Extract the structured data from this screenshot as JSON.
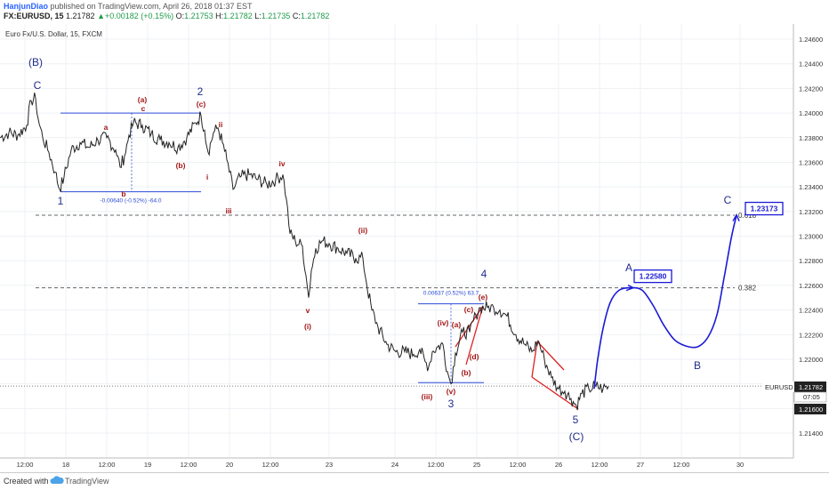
{
  "header": {
    "author": "HanjunDiao",
    "published": "published on TradingView.com, April 26, 2018 01:37 EST",
    "symbol": "FX:EURUSD, 15",
    "price": "1.21782",
    "change": "+0.00182 (+0.15%)",
    "o_label": "O:",
    "o_value": "1.21753",
    "h_label": "H:",
    "h_value": "1.21782",
    "l_label": "L:",
    "l_value": "1.21735",
    "c_label": "C:",
    "c_value": "1.21782"
  },
  "footer": {
    "created_with": "Created with",
    "brand": "TradingView"
  },
  "chart_data": {
    "type": "line",
    "title": "Euro Fx/U.S. Dollar, 15, FXCM",
    "symbol_tag": "EURUSD",
    "last_price": "1.21782",
    "countdown": "07:05",
    "level_tag": "1.21600",
    "ylim": [
      1.2125,
      1.2475
    ],
    "y_ticks": [
      "1.24600",
      "1.24400",
      "1.24200",
      "1.24000",
      "1.23800",
      "1.23600",
      "1.23400",
      "1.23200",
      "1.23000",
      "1.22800",
      "1.22600",
      "1.22400",
      "1.22200",
      "1.22000",
      "1.21800",
      "1.21600",
      "1.21400"
    ],
    "x_ticks": [
      "12:00",
      "18",
      "12:00",
      "19",
      "12:00",
      "20",
      "12:00",
      "23",
      "24",
      "12:00",
      "25",
      "12:00",
      "26",
      "12:00",
      "27",
      "12:00",
      "30"
    ],
    "series": [
      {
        "values": [
          [
            0,
            1.238
          ],
          [
            10,
            1.2384
          ],
          [
            20,
            1.2382
          ],
          [
            30,
            1.239
          ],
          [
            35,
            1.241
          ],
          [
            40,
            1.2412
          ],
          [
            43,
            1.2395
          ],
          [
            48,
            1.238
          ],
          [
            55,
            1.2368
          ],
          [
            62,
            1.2352
          ],
          [
            67,
            1.2338
          ],
          [
            72,
            1.2348
          ],
          [
            80,
            1.237
          ],
          [
            90,
            1.2376
          ],
          [
            100,
            1.2372
          ],
          [
            110,
            1.2378
          ],
          [
            120,
            1.238
          ],
          [
            130,
            1.237
          ],
          [
            135,
            1.2356
          ],
          [
            140,
            1.2365
          ],
          [
            145,
            1.2382
          ],
          [
            150,
            1.2392
          ],
          [
            160,
            1.239
          ],
          [
            170,
            1.2383
          ],
          [
            180,
            1.2378
          ],
          [
            190,
            1.2376
          ],
          [
            200,
            1.2372
          ],
          [
            210,
            1.238
          ],
          [
            220,
            1.2392
          ],
          [
            226,
            1.2398
          ],
          [
            230,
            1.2386
          ],
          [
            234,
            1.2368
          ],
          [
            240,
            1.2384
          ],
          [
            245,
            1.2388
          ],
          [
            250,
            1.2376
          ],
          [
            255,
            1.2362
          ],
          [
            262,
            1.2338
          ],
          [
            270,
            1.2348
          ],
          [
            280,
            1.235
          ],
          [
            290,
            1.2346
          ],
          [
            300,
            1.2342
          ],
          [
            310,
            1.2346
          ],
          [
            318,
            1.235
          ],
          [
            322,
            1.233
          ],
          [
            326,
            1.2302
          ],
          [
            332,
            1.2296
          ],
          [
            340,
            1.2292
          ],
          [
            344,
            1.2268
          ],
          [
            347,
            1.225
          ],
          [
            350,
            1.2272
          ],
          [
            355,
            1.229
          ],
          [
            362,
            1.2296
          ],
          [
            370,
            1.2294
          ],
          [
            380,
            1.229
          ],
          [
            390,
            1.2286
          ],
          [
            400,
            1.2282
          ],
          [
            408,
            1.2282
          ],
          [
            412,
            1.2262
          ],
          [
            418,
            1.224
          ],
          [
            425,
            1.2226
          ],
          [
            435,
            1.2212
          ],
          [
            445,
            1.2206
          ],
          [
            455,
            1.2206
          ],
          [
            465,
            1.2204
          ],
          [
            472,
            1.2208
          ],
          [
            478,
            1.2198
          ],
          [
            482,
            1.2194
          ],
          [
            486,
            1.2206
          ],
          [
            492,
            1.221
          ],
          [
            498,
            1.2212
          ],
          [
            503,
            1.219
          ],
          [
            507,
            1.218
          ],
          [
            512,
            1.2205
          ],
          [
            520,
            1.2222
          ],
          [
            528,
            1.2222
          ],
          [
            535,
            1.2236
          ],
          [
            540,
            1.2242
          ],
          [
            548,
            1.2242
          ],
          [
            555,
            1.2242
          ],
          [
            562,
            1.224
          ],
          [
            570,
            1.2235
          ],
          [
            580,
            1.222
          ],
          [
            590,
            1.2212
          ],
          [
            598,
            1.2206
          ],
          [
            605,
            1.2215
          ],
          [
            612,
            1.22
          ],
          [
            620,
            1.2185
          ],
          [
            628,
            1.2176
          ],
          [
            635,
            1.2174
          ],
          [
            642,
            1.2168
          ],
          [
            648,
            1.2162
          ],
          [
            654,
            1.2172
          ],
          [
            662,
            1.2176
          ],
          [
            670,
            1.2178
          ],
          [
            678,
            1.2176
          ],
          [
            684,
            1.2178
          ]
        ]
      },
      {
        "values": [
          [
            668,
            1.2176
          ],
          [
            672,
            1.22
          ],
          [
            678,
            1.2225
          ],
          [
            686,
            1.2246
          ],
          [
            696,
            1.2256
          ],
          [
            710,
            1.2258
          ],
          [
            722,
            1.2256
          ],
          [
            734,
            1.2244
          ],
          [
            746,
            1.2228
          ],
          [
            758,
            1.2216
          ],
          [
            770,
            1.2211
          ],
          [
            784,
            1.221
          ],
          [
            796,
            1.2218
          ],
          [
            806,
            1.2236
          ],
          [
            814,
            1.2266
          ],
          [
            822,
            1.2298
          ],
          [
            828,
            1.2317
          ]
        ]
      }
    ],
    "levels": [
      {
        "y": 1.2317,
        "label": "0.618"
      },
      {
        "y": 1.2258,
        "label": "0.382"
      },
      {
        "y": 1.21782,
        "label": ""
      }
    ],
    "range_boxes": [
      {
        "top": 1.24,
        "bottom": 1.2336,
        "label": "-0.00640 (-0.52%) -64.0"
      },
      {
        "top": 1.2245,
        "bottom": 1.2181,
        "label": "0.00637 (0.52%) 63.7"
      }
    ],
    "targets": [
      {
        "label": "1.22580",
        "y": 1.2258
      },
      {
        "label": "1.23173",
        "y": 1.23173
      }
    ],
    "annotations": [
      {
        "text": "(B)",
        "color": "navy"
      },
      {
        "text": "C",
        "color": "navy"
      },
      {
        "text": "1",
        "color": "navy"
      },
      {
        "text": "2",
        "color": "navy"
      },
      {
        "text": "3",
        "color": "navy"
      },
      {
        "text": "4",
        "color": "navy"
      },
      {
        "text": "5",
        "color": "navy"
      },
      {
        "text": "(C)",
        "color": "navy"
      },
      {
        "text": "A",
        "color": "navy"
      },
      {
        "text": "B",
        "color": "navy"
      },
      {
        "text": "C",
        "color": "navy"
      },
      {
        "text": "a",
        "color": "red"
      },
      {
        "text": "b",
        "color": "red"
      },
      {
        "text": "(a)",
        "color": "red"
      },
      {
        "text": "c",
        "color": "red"
      },
      {
        "text": "(c)",
        "color": "red"
      },
      {
        "text": "(b)",
        "color": "red"
      },
      {
        "text": "ii",
        "color": "red"
      },
      {
        "text": "i",
        "color": "red"
      },
      {
        "text": "iii",
        "color": "red"
      },
      {
        "text": "iv",
        "color": "red"
      },
      {
        "text": "v",
        "color": "red"
      },
      {
        "text": "(i)",
        "color": "red"
      },
      {
        "text": "(ii)",
        "color": "red"
      },
      {
        "text": "(iii)",
        "color": "red"
      },
      {
        "text": "(iv)",
        "color": "red"
      },
      {
        "text": "(v)",
        "color": "red"
      },
      {
        "text": "(a)",
        "color": "red"
      },
      {
        "text": "(b)",
        "color": "red"
      },
      {
        "text": "(c)",
        "color": "red"
      },
      {
        "text": "(d)",
        "color": "red"
      },
      {
        "text": "(e)",
        "color": "red"
      }
    ],
    "colors": {
      "price": "#222222",
      "projection": "#1a1ad6",
      "wave_navy": "#1f2d8a",
      "wave_red": "#a31515",
      "channel": "#dd2222",
      "box": "#2a4bd7",
      "grid": "#eef1f5"
    }
  }
}
